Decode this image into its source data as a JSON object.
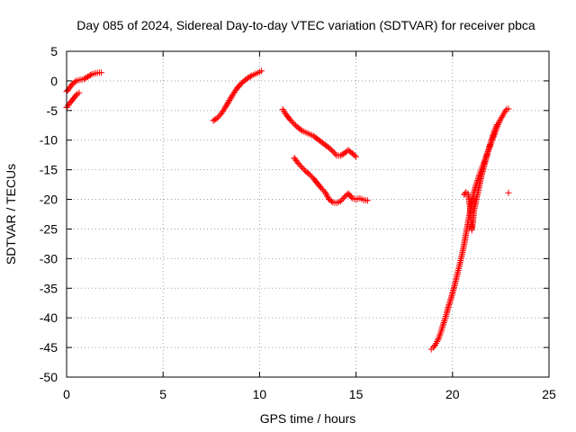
{
  "chart_data": {
    "type": "scatter",
    "title": "Day 085 of 2024, Sidereal Day-to-day VTEC variation (SDTVAR) for receiver pbca",
    "xlabel": "GPS time / hours",
    "ylabel": "SDTVAR / TECUs",
    "xlim": [
      0,
      25
    ],
    "ylim": [
      -50,
      5
    ],
    "xticks": [
      0,
      5,
      10,
      15,
      20,
      25
    ],
    "yticks": [
      5,
      0,
      -5,
      -10,
      -15,
      -20,
      -25,
      -30,
      -35,
      -40,
      -45,
      -50
    ],
    "grid": true,
    "marker": "+",
    "color": "#ff0000",
    "series": [
      {
        "name": "arc-1a",
        "points": [
          [
            0.0,
            -1.8
          ],
          [
            0.15,
            -1.2
          ],
          [
            0.3,
            -0.5
          ],
          [
            0.5,
            0.0
          ],
          [
            0.7,
            0.2
          ],
          [
            0.9,
            0.3
          ],
          [
            1.1,
            0.7
          ],
          [
            1.3,
            1.1
          ],
          [
            1.5,
            1.3
          ],
          [
            1.7,
            1.4
          ],
          [
            1.8,
            1.4
          ]
        ]
      },
      {
        "name": "arc-1b",
        "points": [
          [
            0.0,
            -4.5
          ],
          [
            0.15,
            -3.8
          ],
          [
            0.3,
            -3.2
          ],
          [
            0.45,
            -2.6
          ],
          [
            0.55,
            -2.2
          ],
          [
            0.65,
            -2.0
          ]
        ]
      },
      {
        "name": "arc-2",
        "points": [
          [
            7.6,
            -6.7
          ],
          [
            7.8,
            -6.3
          ],
          [
            8.0,
            -5.6
          ],
          [
            8.2,
            -4.6
          ],
          [
            8.4,
            -3.5
          ],
          [
            8.6,
            -2.4
          ],
          [
            8.8,
            -1.4
          ],
          [
            9.0,
            -0.6
          ],
          [
            9.2,
            0.0
          ],
          [
            9.4,
            0.5
          ],
          [
            9.6,
            0.9
          ],
          [
            9.8,
            1.2
          ],
          [
            10.0,
            1.5
          ],
          [
            10.1,
            1.7
          ]
        ]
      },
      {
        "name": "arc-3",
        "points": [
          [
            11.2,
            -4.8
          ],
          [
            11.4,
            -5.8
          ],
          [
            11.6,
            -6.6
          ],
          [
            11.8,
            -7.3
          ],
          [
            12.0,
            -7.9
          ],
          [
            12.2,
            -8.4
          ],
          [
            12.4,
            -8.7
          ],
          [
            12.6,
            -9.0
          ],
          [
            12.8,
            -9.3
          ],
          [
            13.0,
            -9.8
          ],
          [
            13.2,
            -10.3
          ],
          [
            13.4,
            -10.8
          ],
          [
            13.6,
            -11.3
          ],
          [
            13.8,
            -11.9
          ],
          [
            14.0,
            -12.6
          ],
          [
            14.2,
            -12.6
          ],
          [
            14.4,
            -12.2
          ],
          [
            14.6,
            -11.7
          ],
          [
            14.8,
            -12.2
          ],
          [
            15.0,
            -12.8
          ]
        ]
      },
      {
        "name": "arc-4",
        "points": [
          [
            11.8,
            -13.0
          ],
          [
            12.0,
            -13.9
          ],
          [
            12.2,
            -14.6
          ],
          [
            12.4,
            -15.3
          ],
          [
            12.6,
            -15.8
          ],
          [
            12.8,
            -16.5
          ],
          [
            13.0,
            -17.3
          ],
          [
            13.2,
            -18.1
          ],
          [
            13.4,
            -18.8
          ],
          [
            13.6,
            -20.0
          ],
          [
            13.8,
            -20.5
          ],
          [
            14.0,
            -20.6
          ],
          [
            14.2,
            -20.3
          ],
          [
            14.4,
            -19.6
          ],
          [
            14.6,
            -19.0
          ],
          [
            14.8,
            -19.8
          ],
          [
            15.0,
            -20.0
          ],
          [
            15.2,
            -19.8
          ],
          [
            15.4,
            -20.1
          ],
          [
            15.6,
            -20.2
          ]
        ]
      },
      {
        "name": "arc-5",
        "points": [
          [
            18.9,
            -45.3
          ],
          [
            19.0,
            -45.0
          ],
          [
            19.1,
            -44.6
          ],
          [
            19.2,
            -44.0
          ],
          [
            19.3,
            -43.3
          ],
          [
            19.4,
            -42.4
          ],
          [
            19.5,
            -41.3
          ],
          [
            19.6,
            -40.3
          ],
          [
            19.7,
            -39.2
          ],
          [
            19.8,
            -38.0
          ],
          [
            19.9,
            -37.0
          ],
          [
            20.0,
            -35.8
          ],
          [
            20.1,
            -34.6
          ],
          [
            20.2,
            -33.3
          ],
          [
            20.3,
            -32.0
          ],
          [
            20.4,
            -30.6
          ],
          [
            20.5,
            -29.2
          ],
          [
            20.6,
            -27.6
          ],
          [
            20.7,
            -25.8
          ],
          [
            20.8,
            -24.0
          ],
          [
            20.9,
            -22.2
          ],
          [
            21.0,
            -20.4
          ],
          [
            21.1,
            -19.0
          ],
          [
            21.2,
            -17.8
          ],
          [
            21.3,
            -16.8
          ],
          [
            21.4,
            -15.8
          ],
          [
            21.5,
            -14.9
          ],
          [
            21.6,
            -14.0
          ],
          [
            21.7,
            -13.1
          ],
          [
            21.8,
            -12.2
          ],
          [
            21.9,
            -11.4
          ],
          [
            22.0,
            -10.5
          ],
          [
            22.1,
            -9.6
          ],
          [
            22.2,
            -8.8
          ],
          [
            22.3,
            -7.9
          ],
          [
            22.4,
            -7.1
          ],
          [
            22.5,
            -6.4
          ],
          [
            22.6,
            -5.9
          ],
          [
            22.7,
            -5.3
          ],
          [
            22.8,
            -4.8
          ],
          [
            22.9,
            -4.7
          ]
        ]
      },
      {
        "name": "arc-6",
        "points": [
          [
            20.6,
            -19.2
          ],
          [
            20.7,
            -18.8
          ],
          [
            20.8,
            -19.0
          ],
          [
            20.9,
            -21.0
          ],
          [
            20.95,
            -23.0
          ],
          [
            21.0,
            -25.2
          ],
          [
            21.05,
            -24.0
          ],
          [
            21.1,
            -22.0
          ],
          [
            21.2,
            -20.5
          ],
          [
            21.3,
            -19.0
          ],
          [
            21.4,
            -17.5
          ],
          [
            21.5,
            -16.0
          ],
          [
            21.6,
            -14.8
          ],
          [
            21.7,
            -13.6
          ],
          [
            21.8,
            -12.4
          ],
          [
            21.9,
            -11.2
          ],
          [
            22.0,
            -10.2
          ],
          [
            22.1,
            -9.2
          ],
          [
            22.2,
            -8.2
          ],
          [
            22.3,
            -7.4
          ]
        ]
      },
      {
        "name": "outlier",
        "points": [
          [
            22.9,
            -18.9
          ]
        ]
      }
    ]
  }
}
